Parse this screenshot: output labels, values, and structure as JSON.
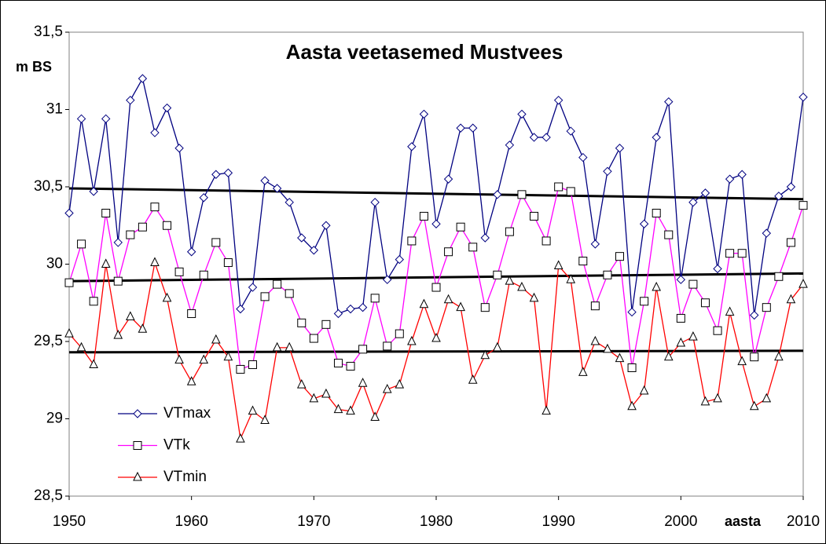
{
  "chart_data": {
    "type": "line",
    "title": "Aasta veetasemed Mustvees",
    "y_label": "m BS",
    "x_label": "aasta",
    "x": [
      1950,
      1951,
      1952,
      1953,
      1954,
      1955,
      1956,
      1957,
      1958,
      1959,
      1960,
      1961,
      1962,
      1963,
      1964,
      1965,
      1966,
      1967,
      1968,
      1969,
      1970,
      1971,
      1972,
      1973,
      1974,
      1975,
      1976,
      1977,
      1978,
      1979,
      1980,
      1981,
      1982,
      1983,
      1984,
      1985,
      1986,
      1987,
      1988,
      1989,
      1990,
      1991,
      1992,
      1993,
      1994,
      1995,
      1996,
      1997,
      1998,
      1999,
      2000,
      2001,
      2002,
      2003,
      2004,
      2005,
      2006,
      2007,
      2008,
      2009,
      2010
    ],
    "series": [
      {
        "name": "VTmax",
        "color": "#000080",
        "marker": "diamond",
        "values": [
          30.33,
          30.94,
          30.47,
          30.94,
          30.14,
          31.06,
          31.2,
          30.85,
          31.01,
          30.75,
          30.08,
          30.43,
          30.58,
          30.59,
          29.71,
          29.85,
          30.54,
          30.49,
          30.4,
          30.17,
          30.09,
          30.25,
          29.68,
          29.71,
          29.72,
          30.4,
          29.9,
          30.03,
          30.76,
          30.97,
          30.26,
          30.55,
          30.88,
          30.88,
          30.17,
          30.45,
          30.77,
          30.97,
          30.82,
          30.82,
          31.06,
          30.86,
          30.69,
          30.13,
          30.6,
          30.75,
          29.69,
          30.26,
          30.82,
          31.05,
          29.9,
          30.4,
          30.46,
          29.97,
          30.55,
          30.58,
          29.67,
          30.2,
          30.44,
          30.5,
          31.08
        ]
      },
      {
        "name": "VTk",
        "color": "#ff00ff",
        "marker": "square",
        "values": [
          29.88,
          30.13,
          29.76,
          30.33,
          29.89,
          30.19,
          30.24,
          30.37,
          30.25,
          29.95,
          29.68,
          29.93,
          30.14,
          30.01,
          29.32,
          29.35,
          29.79,
          29.87,
          29.81,
          29.62,
          29.52,
          29.61,
          29.36,
          29.34,
          29.45,
          29.78,
          29.47,
          29.55,
          30.15,
          30.31,
          29.85,
          30.08,
          30.24,
          30.11,
          29.72,
          29.93,
          30.21,
          30.45,
          30.31,
          30.15,
          30.5,
          30.47,
          30.02,
          29.73,
          29.93,
          30.05,
          29.33,
          29.76,
          30.33,
          30.19,
          29.65,
          29.87,
          29.75,
          29.57,
          30.07,
          30.07,
          29.4,
          29.72,
          29.92,
          30.14,
          30.38
        ]
      },
      {
        "name": "VTmin",
        "color": "#ff0000",
        "marker": "triangle",
        "values": [
          29.55,
          29.46,
          29.35,
          30.0,
          29.54,
          29.66,
          29.58,
          30.01,
          29.78,
          29.38,
          29.24,
          29.38,
          29.51,
          29.4,
          28.87,
          29.05,
          28.99,
          29.46,
          29.46,
          29.22,
          29.13,
          29.16,
          29.06,
          29.05,
          29.23,
          29.01,
          29.19,
          29.22,
          29.5,
          29.74,
          29.52,
          29.77,
          29.72,
          29.25,
          29.41,
          29.46,
          29.89,
          29.85,
          29.78,
          29.05,
          29.99,
          29.9,
          29.3,
          29.5,
          29.45,
          29.39,
          29.08,
          29.18,
          29.85,
          29.4,
          29.49,
          29.53,
          29.11,
          29.13,
          29.69,
          29.37,
          29.08,
          29.13,
          29.4,
          29.77,
          29.87
        ]
      }
    ],
    "trendlines": [
      {
        "color": "#000000",
        "x": [
          1950,
          2010
        ],
        "values": [
          30.49,
          30.42
        ]
      },
      {
        "color": "#000000",
        "x": [
          1950,
          2010
        ],
        "values": [
          29.89,
          29.94
        ]
      },
      {
        "color": "#000000",
        "x": [
          1950,
          2010
        ],
        "values": [
          29.43,
          29.44
        ]
      }
    ],
    "xlim": [
      1950,
      2010
    ],
    "xticks": [
      1950,
      1960,
      1970,
      1980,
      1990,
      2000,
      2010
    ],
    "ylim": [
      28.5,
      31.5
    ],
    "yticks": [
      {
        "value": 28.5,
        "label": "28,5"
      },
      29,
      {
        "value": 29.5,
        "label": "29,5"
      },
      30,
      {
        "value": 30.5,
        "label": "30,5"
      },
      31,
      {
        "value": 31.5,
        "label": "31,5"
      }
    ],
    "legend": "lower left",
    "grid": false
  }
}
